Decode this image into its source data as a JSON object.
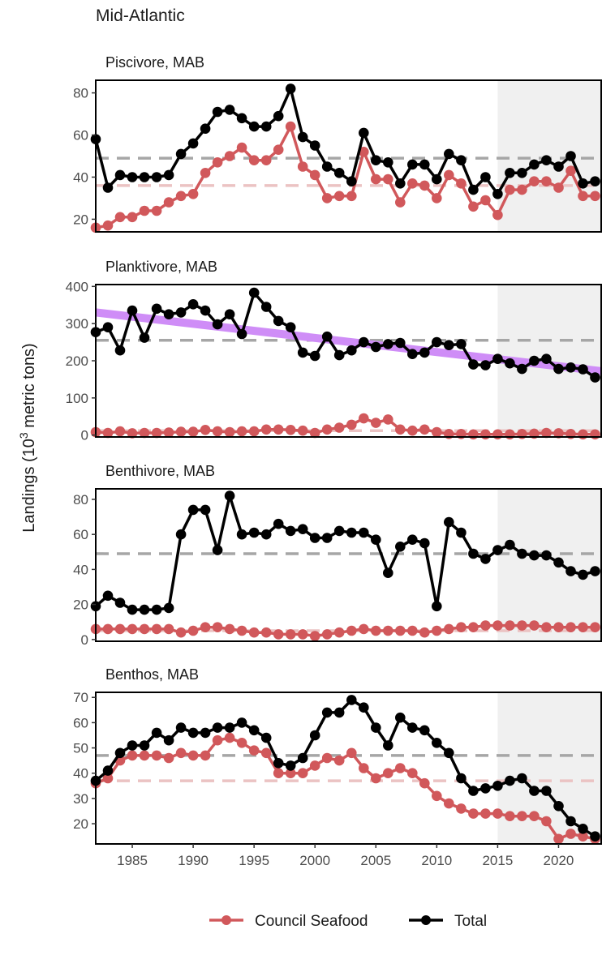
{
  "page": {
    "title": "Mid-Atlantic"
  },
  "ylabel": "Landings (10^3 metric tons)",
  "legend": [
    {
      "label": "Council Seafood",
      "color": "#d1585b"
    },
    {
      "label": "Total",
      "color": "#000000"
    }
  ],
  "colors": {
    "council": "#d1585b",
    "total": "#000000",
    "council_mean": "#ebc3c3",
    "total_mean": "#a6a6a6",
    "trend": "#cf8df7",
    "shade": "#f0f0f0"
  },
  "chart_data": [
    {
      "type": "line",
      "title": "Piscivore, MAB",
      "x": [
        1982,
        1983,
        1984,
        1985,
        1986,
        1987,
        1988,
        1989,
        1990,
        1991,
        1992,
        1993,
        1994,
        1995,
        1996,
        1997,
        1998,
        1999,
        2000,
        2001,
        2002,
        2003,
        2004,
        2005,
        2006,
        2007,
        2008,
        2009,
        2010,
        2011,
        2012,
        2013,
        2014,
        2015,
        2016,
        2017,
        2018,
        2019,
        2020,
        2021,
        2022,
        2023
      ],
      "xlim": [
        1982,
        2023.5
      ],
      "ylim": [
        14,
        86
      ],
      "yticks": [
        20,
        40,
        60,
        80
      ],
      "shaded_x": [
        2015,
        2023.5
      ],
      "series": [
        {
          "name": "Council Seafood",
          "values": [
            16,
            17,
            21,
            21,
            24,
            24,
            28,
            31,
            32,
            42,
            47,
            50,
            54,
            48,
            48,
            53,
            64,
            45,
            41,
            30,
            31,
            31,
            52,
            39,
            39,
            28,
            37,
            36,
            30,
            41,
            37,
            26,
            29,
            22,
            34,
            34,
            38,
            38,
            35,
            43,
            31,
            31
          ],
          "mean": 36
        },
        {
          "name": "Total",
          "values": [
            58,
            35,
            41,
            40,
            40,
            40,
            41,
            51,
            56,
            63,
            71,
            72,
            68,
            64,
            64,
            69,
            82,
            59,
            55,
            45,
            42,
            38,
            61,
            48,
            47,
            37,
            46,
            46,
            39,
            51,
            48,
            34,
            40,
            32,
            42,
            42,
            46,
            48,
            45,
            50,
            37,
            38
          ],
          "mean": 49
        }
      ],
      "trend": null
    },
    {
      "type": "line",
      "title": "Planktivore, MAB",
      "x": [
        1982,
        1983,
        1984,
        1985,
        1986,
        1987,
        1988,
        1989,
        1990,
        1991,
        1992,
        1993,
        1994,
        1995,
        1996,
        1997,
        1998,
        1999,
        2000,
        2001,
        2002,
        2003,
        2004,
        2005,
        2006,
        2007,
        2008,
        2009,
        2010,
        2011,
        2012,
        2013,
        2014,
        2015,
        2016,
        2017,
        2018,
        2019,
        2020,
        2021,
        2022,
        2023
      ],
      "xlim": [
        1982,
        2023.5
      ],
      "ylim": [
        -5,
        405
      ],
      "yticks": [
        0,
        100,
        200,
        300,
        400
      ],
      "shaded_x": [
        2015,
        2023.5
      ],
      "series": [
        {
          "name": "Council Seafood",
          "values": [
            8,
            6,
            10,
            5,
            6,
            6,
            7,
            9,
            9,
            14,
            10,
            8,
            10,
            10,
            15,
            15,
            14,
            12,
            6,
            15,
            20,
            28,
            45,
            33,
            42,
            15,
            12,
            15,
            8,
            3,
            3,
            2,
            2,
            2,
            2,
            3,
            4,
            6,
            5,
            3,
            2,
            2
          ],
          "mean": 12
        },
        {
          "name": "Total",
          "values": [
            277,
            290,
            228,
            335,
            262,
            340,
            325,
            330,
            352,
            335,
            298,
            325,
            272,
            383,
            345,
            307,
            290,
            222,
            213,
            265,
            215,
            228,
            250,
            237,
            245,
            248,
            218,
            222,
            250,
            242,
            245,
            190,
            188,
            205,
            193,
            178,
            200,
            205,
            178,
            182,
            177,
            155
          ],
          "mean": 255
        }
      ],
      "trend": {
        "x": [
          1982,
          2023.5
        ],
        "y": [
          330,
          172
        ]
      }
    },
    {
      "type": "line",
      "title": "Benthivore, MAB",
      "x": [
        1982,
        1983,
        1984,
        1985,
        1986,
        1987,
        1988,
        1989,
        1990,
        1991,
        1992,
        1993,
        1994,
        1995,
        1996,
        1997,
        1998,
        1999,
        2000,
        2001,
        2002,
        2003,
        2004,
        2005,
        2006,
        2007,
        2008,
        2009,
        2010,
        2011,
        2012,
        2013,
        2014,
        2015,
        2016,
        2017,
        2018,
        2019,
        2020,
        2021,
        2022,
        2023
      ],
      "xlim": [
        1982,
        2023.5
      ],
      "ylim": [
        -1,
        86
      ],
      "yticks": [
        0,
        20,
        40,
        60,
        80
      ],
      "shaded_x": [
        2015,
        2023.5
      ],
      "series": [
        {
          "name": "Council Seafood",
          "values": [
            6,
            6,
            6,
            6,
            6,
            6,
            6,
            4,
            5,
            7,
            7,
            6,
            5,
            4,
            4,
            3,
            3,
            3,
            2,
            3,
            4,
            5,
            6,
            5,
            5,
            5,
            5,
            4,
            5,
            6,
            7,
            7,
            8,
            8,
            8,
            8,
            8,
            7,
            7,
            7,
            7,
            7
          ],
          "mean": 5
        },
        {
          "name": "Total",
          "values": [
            19,
            25,
            21,
            17,
            17,
            17,
            18,
            60,
            74,
            74,
            51,
            82,
            60,
            61,
            60,
            66,
            62,
            63,
            58,
            58,
            62,
            61,
            61,
            57,
            38,
            53,
            57,
            55,
            19,
            67,
            61,
            49,
            46,
            51,
            54,
            49,
            48,
            48,
            44,
            39,
            37,
            39
          ],
          "mean": 49
        }
      ],
      "trend": null
    },
    {
      "type": "line",
      "title": "Benthos, MAB",
      "x": [
        1982,
        1983,
        1984,
        1985,
        1986,
        1987,
        1988,
        1989,
        1990,
        1991,
        1992,
        1993,
        1994,
        1995,
        1996,
        1997,
        1998,
        1999,
        2000,
        2001,
        2002,
        2003,
        2004,
        2005,
        2006,
        2007,
        2008,
        2009,
        2010,
        2011,
        2012,
        2013,
        2014,
        2015,
        2016,
        2017,
        2018,
        2019,
        2020,
        2021,
        2022,
        2023
      ],
      "xlim": [
        1982,
        2023.5
      ],
      "ylim": [
        12,
        72
      ],
      "yticks": [
        20,
        30,
        40,
        50,
        60,
        70
      ],
      "xticks": [
        1985,
        1990,
        1995,
        2000,
        2005,
        2010,
        2015,
        2020
      ],
      "shaded_x": [
        2015,
        2023.5
      ],
      "series": [
        {
          "name": "Council Seafood",
          "values": [
            36,
            38,
            45,
            47,
            47,
            47,
            46,
            48,
            47,
            47,
            53,
            54,
            52,
            49,
            48,
            40,
            40,
            40,
            43,
            46,
            45,
            48,
            42,
            38,
            40,
            42,
            40,
            36,
            31,
            28,
            26,
            24,
            24,
            24,
            23,
            23,
            23,
            21,
            14,
            16,
            15,
            14
          ],
          "mean": 37
        },
        {
          "name": "Total",
          "values": [
            37,
            41,
            48,
            51,
            51,
            56,
            53,
            58,
            56,
            56,
            58,
            58,
            60,
            57,
            54,
            44,
            43,
            46,
            55,
            64,
            64,
            69,
            66,
            58,
            51,
            62,
            58,
            57,
            52,
            48,
            38,
            33,
            34,
            35,
            37,
            38,
            33,
            33,
            27,
            21,
            18,
            15
          ],
          "mean": 47
        }
      ],
      "trend": null
    }
  ]
}
